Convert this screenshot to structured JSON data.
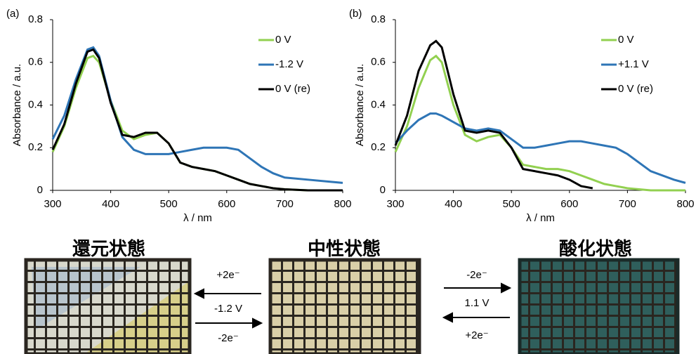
{
  "chart_data": [
    {
      "type": "line",
      "panel_label": "(a)",
      "y_label": "Absorbance / a.u.",
      "x_label": "λ / nm",
      "x": [
        300,
        320,
        340,
        360,
        370,
        380,
        400,
        420,
        440,
        460,
        480,
        500,
        520,
        540,
        560,
        580,
        600,
        620,
        640,
        660,
        680,
        700,
        740,
        780,
        800
      ],
      "xlim": [
        300,
        800
      ],
      "xticks": [
        300,
        400,
        500,
        600,
        700,
        800
      ],
      "ylim": [
        0,
        0.8
      ],
      "yticks": [
        0,
        0.2,
        0.4,
        0.6,
        0.8
      ],
      "series": [
        {
          "name": "0 V",
          "color": "#92d050",
          "values": [
            0.18,
            0.3,
            0.48,
            0.62,
            0.63,
            0.6,
            0.42,
            0.28,
            0.24,
            0.26,
            0.27,
            0.22,
            0.13,
            0.11,
            0.1,
            0.09,
            0.07,
            0.05,
            0.03,
            0.02,
            0.01,
            0.005,
            0,
            0,
            0
          ]
        },
        {
          "name": "-1.2 V",
          "color": "#2e75b6",
          "values": [
            0.24,
            0.35,
            0.52,
            0.66,
            0.67,
            0.63,
            0.42,
            0.25,
            0.19,
            0.17,
            0.17,
            0.17,
            0.18,
            0.19,
            0.2,
            0.2,
            0.2,
            0.19,
            0.15,
            0.11,
            0.08,
            0.06,
            0.05,
            0.04,
            0.035
          ]
        },
        {
          "name": "0 V (re)",
          "color": "#000000",
          "values": [
            0.19,
            0.31,
            0.5,
            0.65,
            0.66,
            0.62,
            0.41,
            0.26,
            0.25,
            0.27,
            0.27,
            0.22,
            0.13,
            0.11,
            0.1,
            0.09,
            0.07,
            0.05,
            0.03,
            0.02,
            0.01,
            0.005,
            0,
            0,
            0
          ]
        }
      ]
    },
    {
      "type": "line",
      "panel_label": "(b)",
      "y_label": "Absorbance / a.u.",
      "x_label": "λ / nm",
      "x": [
        300,
        320,
        340,
        360,
        370,
        380,
        400,
        420,
        440,
        460,
        480,
        500,
        520,
        540,
        560,
        580,
        600,
        620,
        640,
        660,
        680,
        700,
        740,
        780,
        800
      ],
      "xlim": [
        300,
        800
      ],
      "xticks": [
        300,
        400,
        500,
        600,
        700,
        800
      ],
      "ylim": [
        0,
        0.8
      ],
      "yticks": [
        0,
        0.2,
        0.4,
        0.6,
        0.8
      ],
      "series": [
        {
          "name": "0 V",
          "color": "#92d050",
          "values": [
            0.18,
            0.3,
            0.48,
            0.61,
            0.63,
            0.6,
            0.4,
            0.26,
            0.23,
            0.25,
            0.26,
            0.2,
            0.12,
            0.11,
            0.1,
            0.1,
            0.09,
            0.07,
            0.05,
            0.03,
            0.02,
            0.01,
            0,
            0,
            0
          ]
        },
        {
          "name": "+1.1 V",
          "color": "#2e75b6",
          "values": [
            0.22,
            0.28,
            0.33,
            0.36,
            0.36,
            0.35,
            0.32,
            0.29,
            0.28,
            0.29,
            0.28,
            0.24,
            0.2,
            0.2,
            0.21,
            0.22,
            0.23,
            0.23,
            0.22,
            0.21,
            0.2,
            0.17,
            0.09,
            0.05,
            0.035
          ]
        },
        {
          "name": "0 V (re)",
          "color": "#000000",
          "values": [
            0.21,
            0.35,
            0.56,
            0.68,
            0.7,
            0.67,
            0.45,
            0.28,
            0.27,
            0.28,
            0.27,
            0.2,
            0.1,
            0.09,
            0.08,
            0.07,
            0.05,
            0.02,
            0.01,
            null,
            null,
            null,
            null,
            null,
            null
          ]
        }
      ]
    }
  ],
  "states": {
    "reduced": "還元状態",
    "neutral": "中性状態",
    "oxidized": "酸化状態"
  },
  "arrows_left": {
    "top": "+2e⁻",
    "middle": "-1.2 V",
    "bottom": "-2e⁻"
  },
  "arrows_right": {
    "top": "-2e⁻",
    "middle": "1.1 V",
    "bottom": "+2e⁻"
  }
}
